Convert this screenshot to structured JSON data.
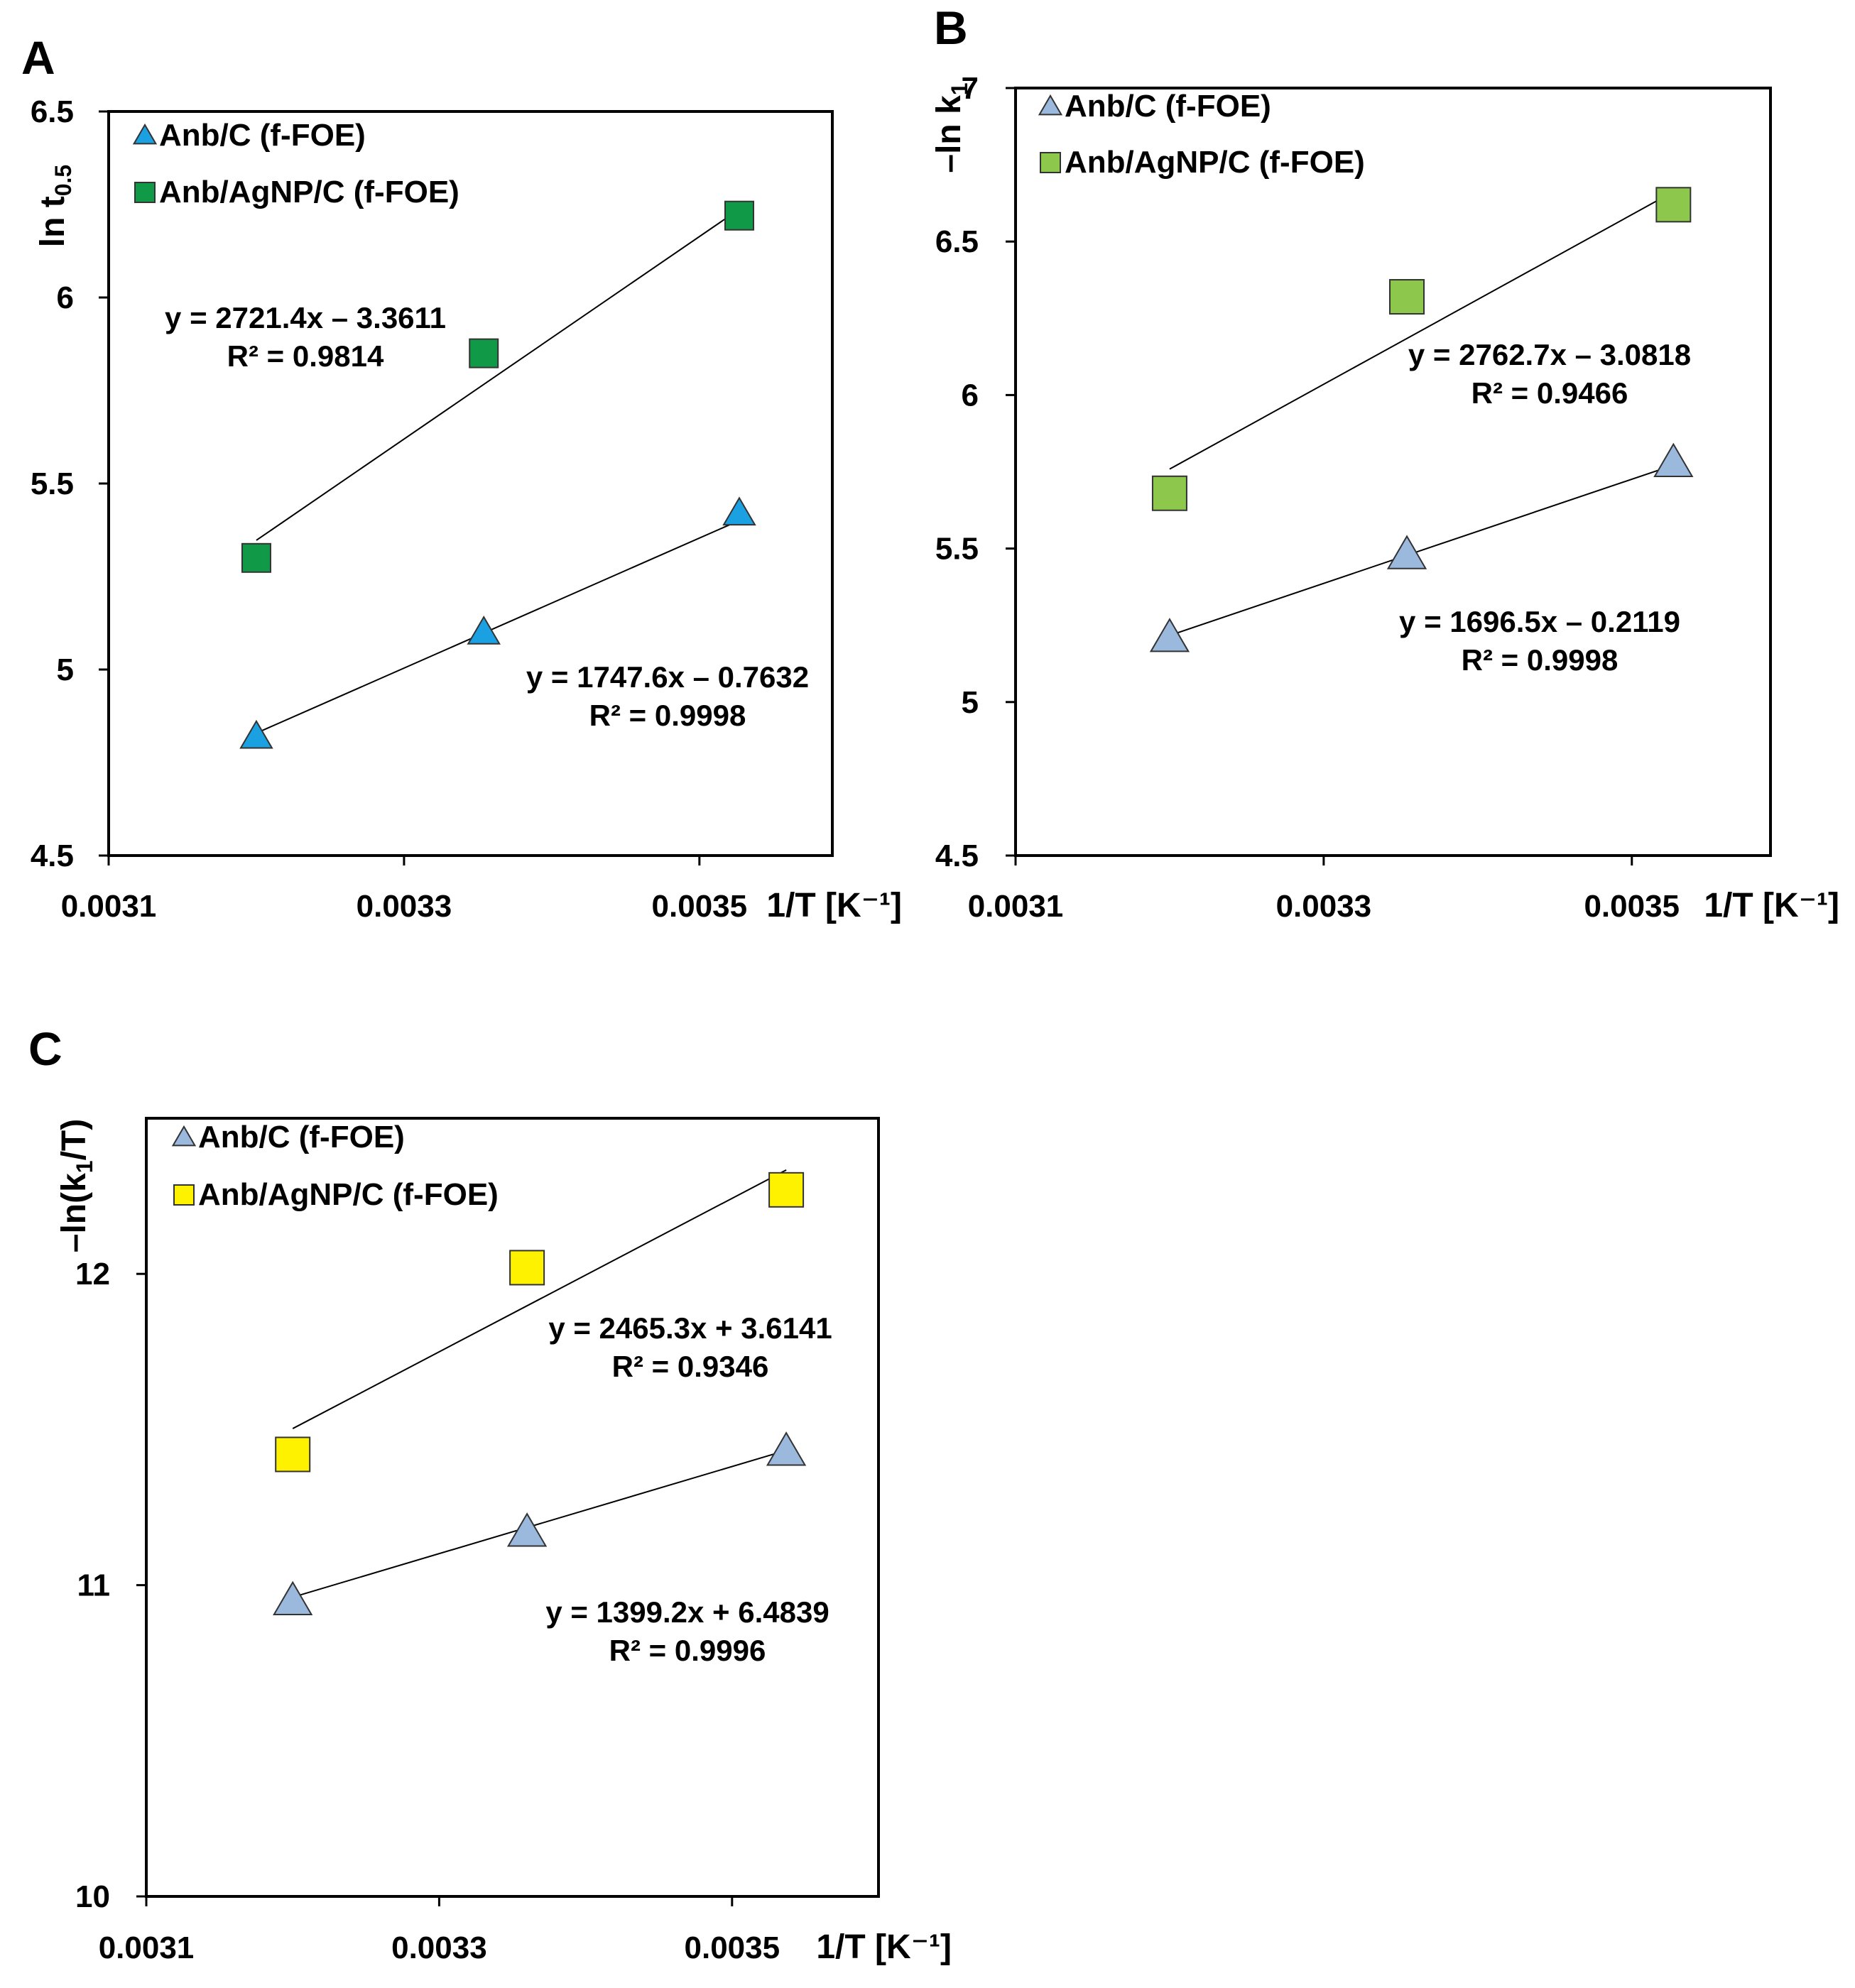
{
  "chart_data": [
    {
      "type": "scatter",
      "panel": "A",
      "xlabel": "1/T [K⁻¹]",
      "ylabel": "ln t",
      "ylabel_sub": "0.5",
      "xlim": [
        0.0031,
        0.00359
      ],
      "ylim": [
        4.5,
        6.5
      ],
      "xticks": [
        "0.0031",
        "0.0033",
        "0.0035"
      ],
      "yticks": [
        "4.5",
        "5",
        "5.5",
        "6",
        "6.5"
      ],
      "series": [
        {
          "name": "Anb/C (f-FOE)",
          "marker": "triangle",
          "color": "#1BA1E2",
          "x": [
            0.0032,
            0.003354,
            0.003527
          ],
          "y": [
            4.82,
            5.1,
            5.42
          ],
          "fit": {
            "slope": 1747.6,
            "intercept": -0.7632
          },
          "equation": "y = 1747.6x – 0.7632",
          "r2": "R² = 0.9998"
        },
        {
          "name": "Anb/AgNP/C (f-FOE)",
          "marker": "square",
          "color": "#109A48",
          "x": [
            0.0032,
            0.003354,
            0.003527
          ],
          "y": [
            5.3,
            5.85,
            6.22
          ],
          "fit": {
            "slope": 2721.4,
            "intercept": -3.3611
          },
          "equation": "y = 2721.4x – 3.3611",
          "r2": "R² = 0.9814"
        }
      ]
    },
    {
      "type": "scatter",
      "panel": "B",
      "xlabel": "1/T [K⁻¹]",
      "ylabel": "–ln k",
      "ylabel_sub": "1",
      "xlim": [
        0.0031,
        0.00359
      ],
      "ylim": [
        4.5,
        7
      ],
      "xticks": [
        "0.0031",
        "0.0033",
        "0.0035"
      ],
      "yticks": [
        "4.5",
        "5",
        "5.5",
        "6",
        "6.5",
        "7"
      ],
      "series": [
        {
          "name": "Anb/C (f-FOE)",
          "marker": "triangle",
          "color": "#9BB8DD",
          "x": [
            0.0032,
            0.003354,
            0.003527
          ],
          "y": [
            5.21,
            5.48,
            5.78
          ],
          "fit": {
            "slope": 1696.5,
            "intercept": -0.2119
          },
          "equation": "y = 1696.5x – 0.2119",
          "r2": "R² = 0.9998"
        },
        {
          "name": "Anb/AgNP/C (f-FOE)",
          "marker": "square",
          "color": "#8DC84C",
          "x": [
            0.0032,
            0.003354,
            0.003527
          ],
          "y": [
            5.68,
            6.32,
            6.62
          ],
          "fit": {
            "slope": 2762.7,
            "intercept": -3.0818
          },
          "equation": "y = 2762.7x – 3.0818",
          "r2": "R² = 0.9466"
        }
      ]
    },
    {
      "type": "scatter",
      "panel": "C",
      "xlabel": "1/T [K⁻¹]",
      "ylabel": "–ln(k",
      "ylabel_sub": "1",
      "ylabel_suffix": "/T)",
      "xlim": [
        0.0031,
        0.0036
      ],
      "ylim": [
        10,
        12.5
      ],
      "xticks": [
        "0.0031",
        "0.0033",
        "0.0035"
      ],
      "yticks": [
        "10",
        "11",
        "12"
      ],
      "series": [
        {
          "name": "Anb/C (f-FOE)",
          "marker": "triangle",
          "color": "#9BB8DD",
          "x": [
            0.0032,
            0.00336,
            0.003537
          ],
          "y": [
            10.95,
            11.17,
            11.43
          ],
          "fit": {
            "slope": 1399.2,
            "intercept": 6.4839
          },
          "equation": "y = 1399.2x + 6.4839",
          "r2": "R² = 0.9996"
        },
        {
          "name": "Anb/AgNP/C (f-FOE)",
          "marker": "square",
          "color": "#FFF200",
          "x": [
            0.0032,
            0.00336,
            0.003537
          ],
          "y": [
            11.42,
            12.02,
            12.27
          ],
          "fit": {
            "slope": 2465.3,
            "intercept": 3.6141
          },
          "equation": "y = 2465.3x + 3.6141",
          "r2": "R² = 0.9346"
        }
      ]
    }
  ]
}
